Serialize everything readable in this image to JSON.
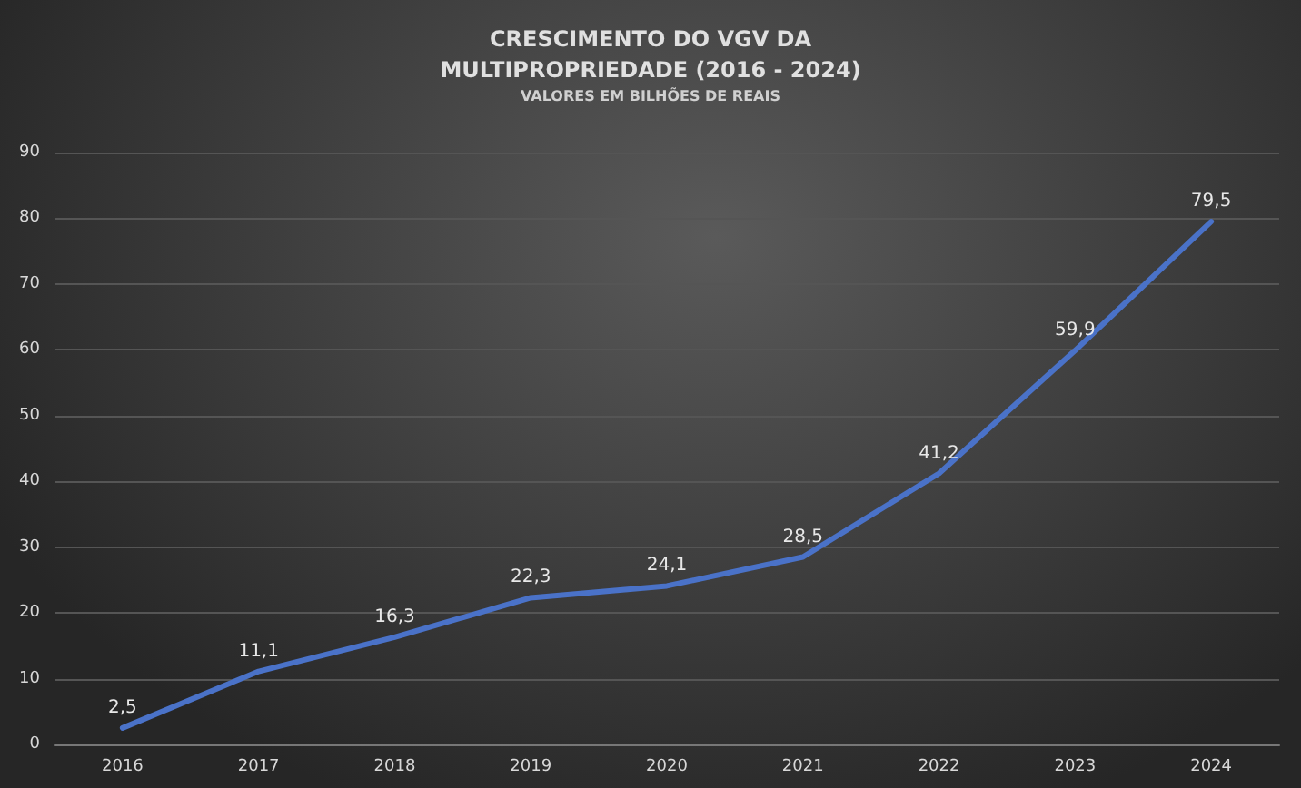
{
  "chart_data": {
    "type": "line",
    "title": "CRESCIMENTO DO VGV DA\nMULTIPROPRIEDADE (2016 - 2024)",
    "subtitle": "VALORES EM BILHÕES DE REAIS",
    "categories": [
      "2016",
      "2017",
      "2018",
      "2019",
      "2020",
      "2021",
      "2022",
      "2023",
      "2024"
    ],
    "series": [
      {
        "color": "#4a72c8",
        "values": [
          2.5,
          11.1,
          16.3,
          22.3,
          24.1,
          28.5,
          41.2,
          59.9,
          79.5
        ],
        "value_labels": [
          "2,5",
          "11,1",
          "16,3",
          "22,3",
          "24,1",
          "28,5",
          "41,2",
          "59,9",
          "79,5"
        ]
      }
    ],
    "ylim": [
      0,
      90
    ],
    "yticks": [
      0,
      10,
      20,
      30,
      40,
      50,
      60,
      70,
      80,
      90
    ],
    "grid": "y",
    "marker": "none",
    "line_style": "solid"
  }
}
